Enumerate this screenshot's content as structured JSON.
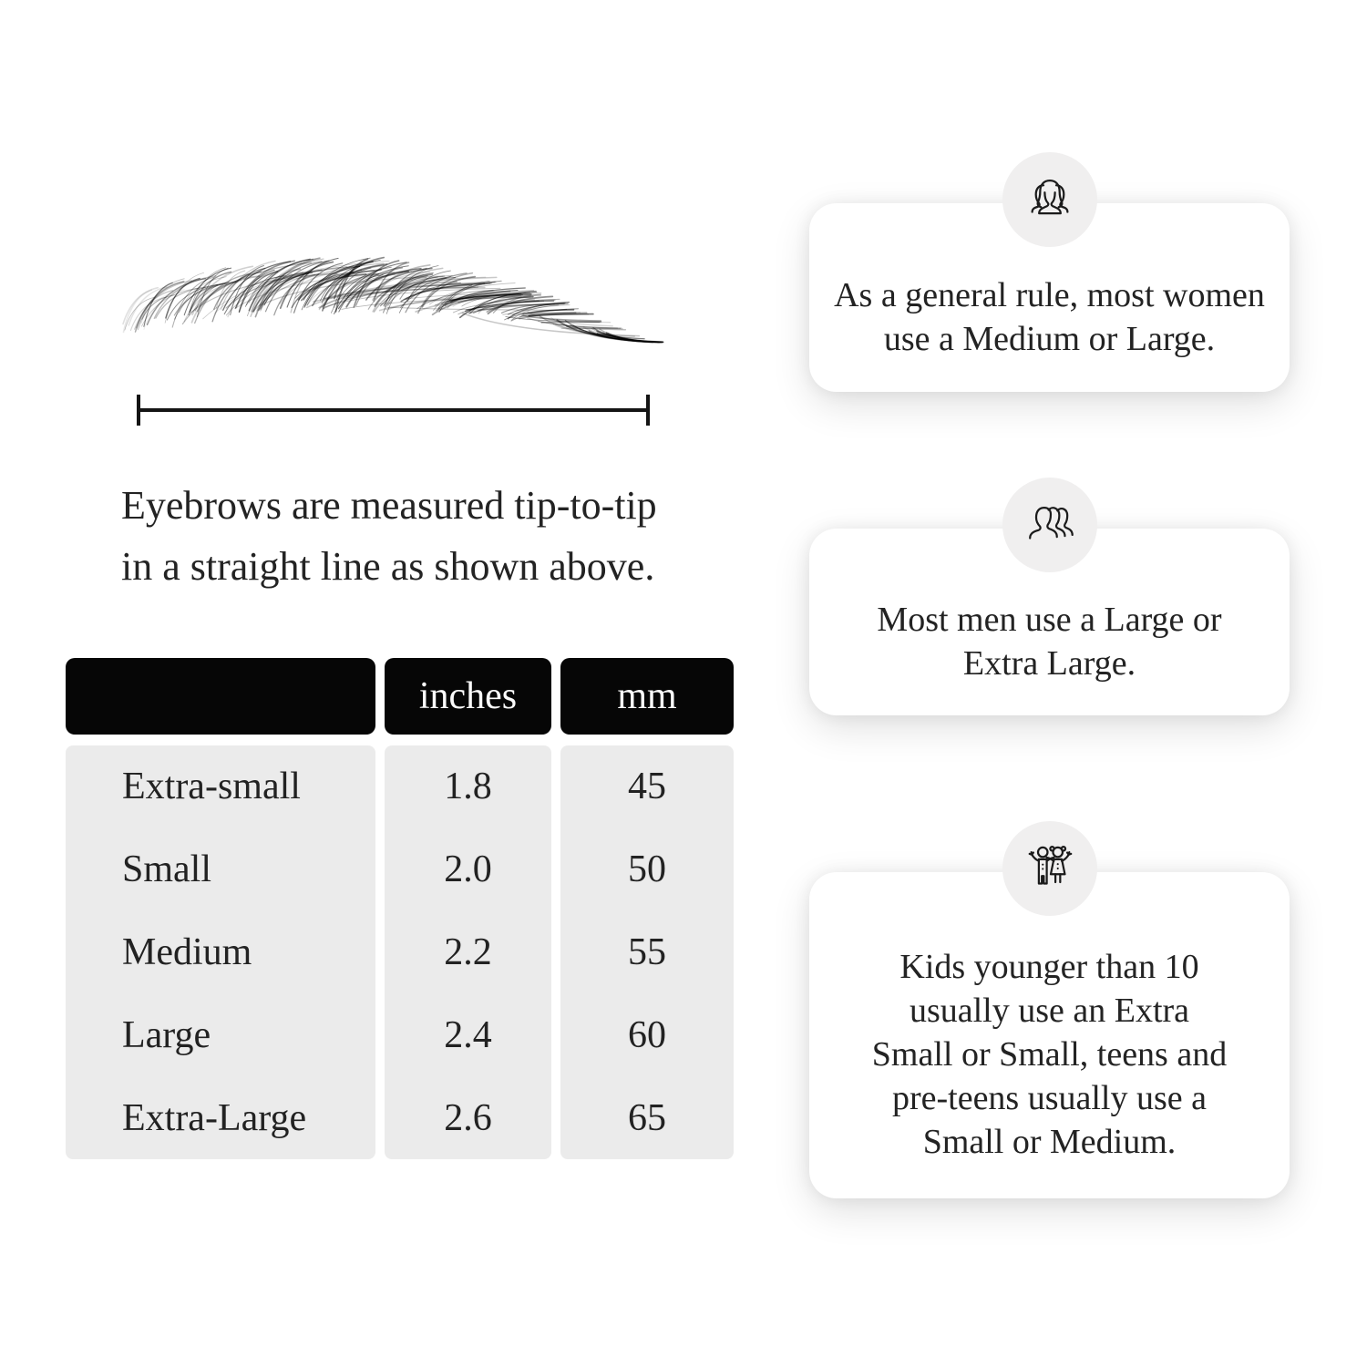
{
  "page": {
    "background": "#ffffff",
    "text_color": "#232323"
  },
  "measurement_figure": {
    "caption_lines": [
      "Eyebrows are measured tip-to-tip",
      "in a straight line as shown above."
    ]
  },
  "chart_data": {
    "type": "table",
    "columns": [
      "",
      "inches",
      "mm"
    ],
    "rows": [
      {
        "size": "Extra-small",
        "inches": "1.8",
        "mm": "45"
      },
      {
        "size": "Small",
        "inches": "2.0",
        "mm": "50"
      },
      {
        "size": "Medium",
        "inches": "2.2",
        "mm": "55"
      },
      {
        "size": "Large",
        "inches": "2.4",
        "mm": "60"
      },
      {
        "size": "Extra-Large",
        "inches": "2.6",
        "mm": "65"
      }
    ],
    "layout_hints": {
      "header_bg": "#060606",
      "header_text_color": "#fafafa",
      "body_bg": "#ebebeb",
      "grid": false
    }
  },
  "info_cards": [
    {
      "icon": "women-group-icon",
      "lines": [
        "As a general rule, most women",
        "use a Medium or Large."
      ]
    },
    {
      "icon": "men-group-icon",
      "lines": [
        "Most men use a Large or",
        "Extra Large."
      ]
    },
    {
      "icon": "kids-icon",
      "lines": [
        "Kids younger than 10",
        "usually use an Extra",
        "Small or Small, teens and",
        "pre-teens usually use a",
        "Small or Medium."
      ]
    }
  ]
}
